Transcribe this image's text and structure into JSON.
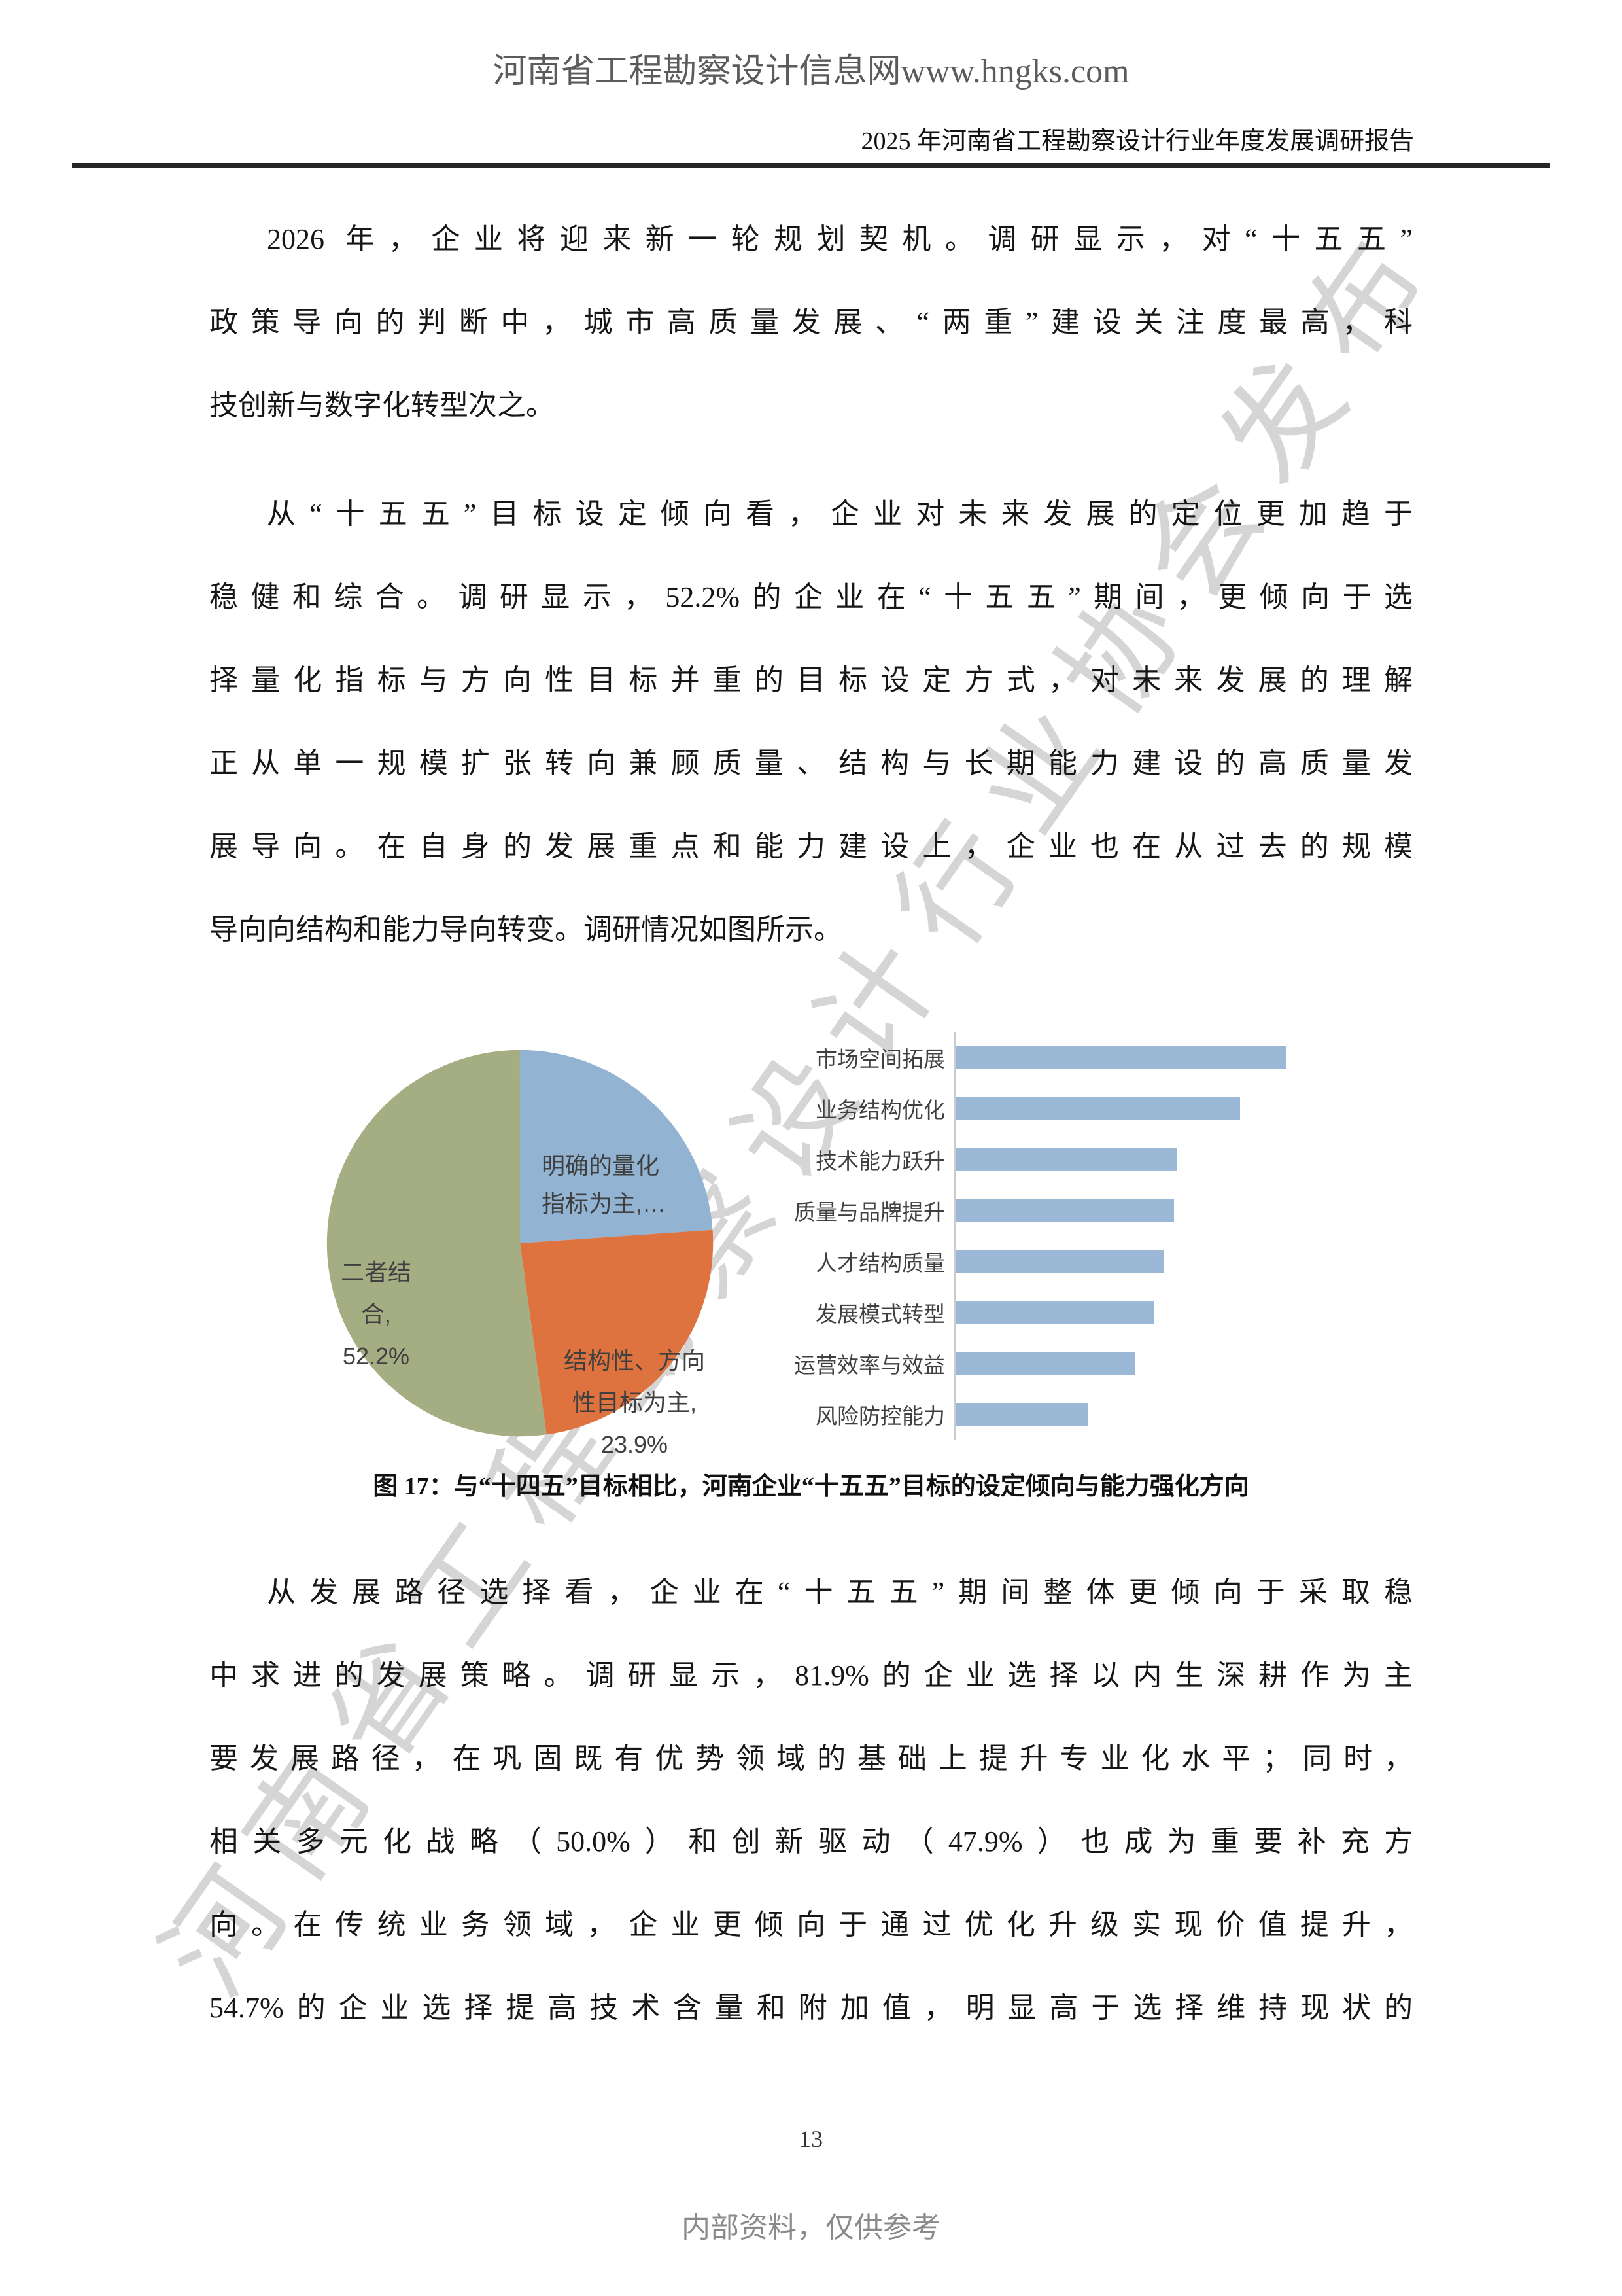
{
  "header": {
    "site": "河南省工程勘察设计信息网www.hngks.com",
    "report_title": "2025 年河南省工程勘察设计行业年度发展调研报告"
  },
  "watermark": {
    "text": "河南省工程勘察设计行业协会发布"
  },
  "body": {
    "p1": {
      "lines": [
        "2026 年，企业将迎来新一轮规划契机。调研显示，对“十五五”",
        "政策导向的判断中，城市高质量发展、“两重”建设关注度最高，科",
        "技创新与数字化转型次之。"
      ]
    },
    "p2": {
      "lines": [
        "从“十五五”目标设定倾向看，企业对未来发展的定位更加趋于",
        "稳健和综合。调研显示，52.2%的企业在“十五五”期间，更倾向于选",
        "择量化指标与方向性目标并重的目标设定方式，对未来发展的理解",
        "正从单一规模扩张转向兼顾质量、结构与长期能力建设的高质量发",
        "展导向。在自身的发展重点和能力建设上，企业也在从过去的规模",
        "导向向结构和能力导向转变。调研情况如图所示。"
      ]
    },
    "p3": {
      "lines": [
        "从发展路径选择看，企业在“十五五”期间整体更倾向于采取稳",
        "中求进的发展策略。调研显示，81.9%的企业选择以内生深耕作为主",
        "要发展路径，在巩固既有优势领域的基础上提升专业化水平；同时，",
        "相关多元化战略（50.0%）和创新驱动（47.9%）也成为重要补充方",
        "向。在传统业务领域，企业更倾向于通过优化升级实现价值提升，",
        "54.7%的企业选择提高技术含量和附加值，明显高于选择维持现状的"
      ]
    }
  },
  "figure": {
    "caption": "图 17：与“十四五”目标相比，河南企业“十五五”目标的设定倾向与能力强化方向"
  },
  "chart_data": [
    {
      "type": "pie",
      "labels": [
        "明确的量化指标为主",
        "结构性、方向性目标为主",
        "二者结合"
      ],
      "values": [
        23.9,
        23.9,
        52.2
      ],
      "colors": [
        "#92b4d2",
        "#de7340",
        "#a5ad82"
      ],
      "start_angle_deg": 0,
      "direction": "clockwise",
      "legend_position": "none",
      "slice_label_texts": [
        [
          "明确的量化",
          "指标为主,…"
        ],
        [
          "结构性、方向",
          "性目标为主,",
          "23.9%"
        ],
        [
          "二者结",
          "合,",
          "52.2%"
        ]
      ]
    },
    {
      "type": "bar",
      "orientation": "horizontal",
      "categories": [
        "市场空间拓展",
        "业务结构优化",
        "技术能力跃升",
        "质量与品牌提升",
        "人才结构质量",
        "发展模式转型",
        "运营效率与效益",
        "风险防控能力"
      ],
      "values": [
        100,
        86,
        67,
        66,
        63,
        60,
        54,
        40
      ],
      "value_scale": "relative bar length, max normalized to 100 (axis unlabeled)",
      "bar_color": "#9bb8d6",
      "axis_color": "#cccccc",
      "grid": false
    }
  ],
  "footer": {
    "page_number": "13",
    "note": "内部资料，仅供参考"
  },
  "colors": {
    "header_text": "#5b5b5b",
    "rule": "#262626",
    "body_text": "#161616",
    "chart_label_text": "#3f3f3f",
    "footer_text": "#8a8a8a",
    "watermark": "#9c9c9c"
  }
}
